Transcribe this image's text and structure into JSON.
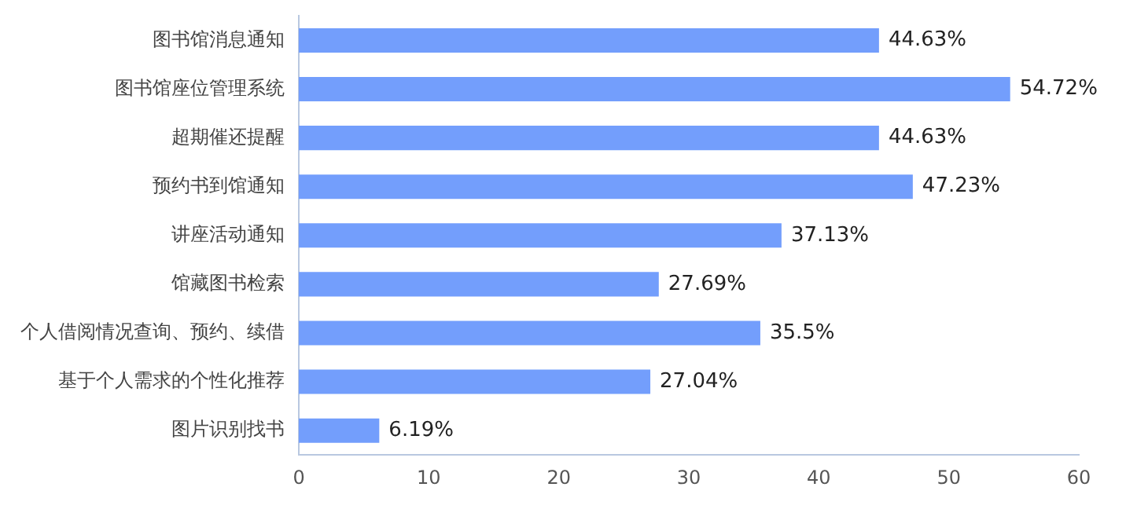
{
  "chart_data": {
    "type": "bar",
    "orientation": "horizontal",
    "categories": [
      "图书馆消息通知",
      "图书馆座位管理系统",
      "超期催还提醒",
      "预约书到馆通知",
      "讲座活动通知",
      "馆藏图书检索",
      "个人借阅情况查询、预约、续借",
      "基于个人需求的个性化推荐",
      "图片识别找书"
    ],
    "values": [
      44.63,
      54.72,
      44.63,
      47.23,
      37.13,
      27.69,
      35.5,
      27.04,
      6.19
    ],
    "value_labels": [
      "44.63%",
      "54.72%",
      "44.63%",
      "47.23%",
      "37.13%",
      "27.69%",
      "35.5%",
      "27.04%",
      "6.19%"
    ],
    "color": "#739efc",
    "xlim": [
      0,
      60
    ],
    "xticks": [
      0,
      10,
      20,
      30,
      40,
      50,
      60
    ],
    "grid": false,
    "legend": false
  }
}
